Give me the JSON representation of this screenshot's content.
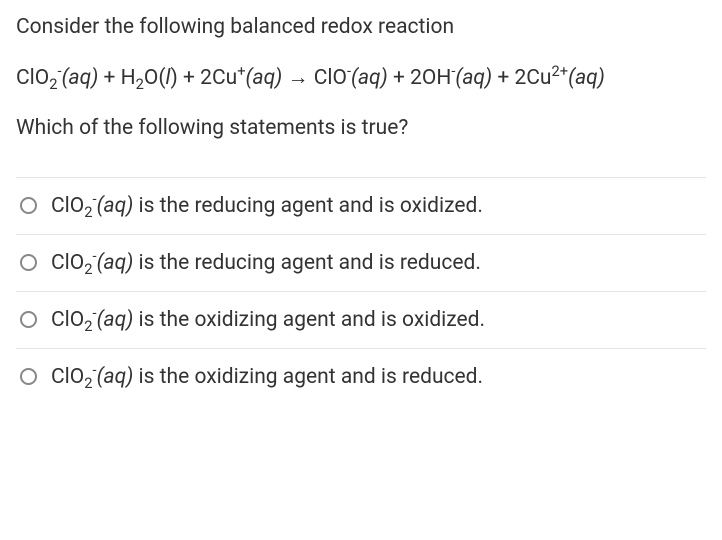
{
  "question": {
    "intro": "Consider the following balanced redox reaction",
    "prompt": "Which of the following statements is true?"
  },
  "equation": {
    "lhs_part1": "ClO",
    "lhs_sub1": "2",
    "lhs_sup1": "-",
    "aq1": "(aq)",
    "plus": " + ",
    "h2o_h": "H",
    "h2o_sub": "2",
    "h2o_o": "O(",
    "h2o_l": "l",
    "h2o_close": ")",
    "cu_coef": "2Cu",
    "cu_sup": "+",
    "aq2": "(aq)",
    "arrow": " → ",
    "clo": "ClO",
    "clo_sup": "-",
    "aq3": "(aq)",
    "oh_coef": "2OH",
    "oh_sup": "-",
    "aq4": "(aq)",
    "cu2_coef": "2Cu",
    "cu2_sup": "2+",
    "aq5": "(aq)"
  },
  "options": [
    {
      "species": "ClO",
      "sub": "2",
      "sup": "-",
      "state": "(aq)",
      "tail": " is the reducing agent and is oxidized."
    },
    {
      "species": "ClO",
      "sub": "2",
      "sup": "-",
      "state": "(aq)",
      "tail": " is the reducing agent and is reduced."
    },
    {
      "species": "ClO",
      "sub": "2",
      "sup": "-",
      "state": "(aq)",
      "tail": " is the oxidizing agent and is oxidized."
    },
    {
      "species": "ClO",
      "sub": "2",
      "sup": "-",
      "state": "(aq)",
      "tail": " is the oxidizing agent and is reduced."
    }
  ],
  "style": {
    "text_color": "#333333",
    "border_color": "#e5e5e5",
    "radio_border": "#888888",
    "body_fontsize": 21
  }
}
